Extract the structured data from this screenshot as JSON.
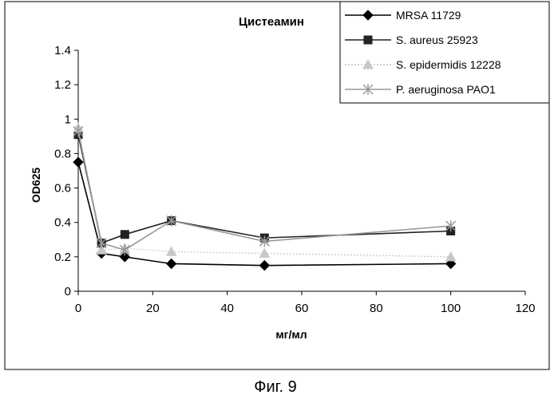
{
  "figure_caption": "Фиг. 9",
  "chart_data": {
    "type": "line",
    "title": "Цистеамин",
    "xlabel": "мг/мл",
    "ylabel": "OD625",
    "xlim": [
      0,
      120
    ],
    "ylim": [
      0,
      1.4
    ],
    "xticks": [
      "0",
      "20",
      "40",
      "60",
      "80",
      "100",
      "120"
    ],
    "yticks": [
      "0",
      "0.2",
      "0.4",
      "0.6",
      "0.8",
      "1",
      "1.2",
      "1.4"
    ],
    "grid": false,
    "legend_position": "top-right",
    "x": [
      0,
      6.25,
      12.5,
      25,
      50,
      100
    ],
    "series": [
      {
        "name": "MRSA 11729",
        "marker": "diamond",
        "color": "#000000",
        "values": [
          0.75,
          0.22,
          0.2,
          0.16,
          0.15,
          0.16
        ]
      },
      {
        "name": "S. aureus 25923",
        "marker": "square",
        "color": "#222222",
        "values": [
          0.91,
          0.28,
          0.33,
          0.41,
          0.31,
          0.35
        ]
      },
      {
        "name": "S. epidermidis 12228",
        "marker": "triangle",
        "color": "#c8c8c8",
        "values": [
          0.95,
          0.24,
          0.25,
          0.23,
          0.22,
          0.2
        ]
      },
      {
        "name": "P. aeruginosa PAO1",
        "marker": "x",
        "color": "#999999",
        "values": [
          0.93,
          0.28,
          0.24,
          0.41,
          0.29,
          0.38
        ]
      }
    ]
  }
}
